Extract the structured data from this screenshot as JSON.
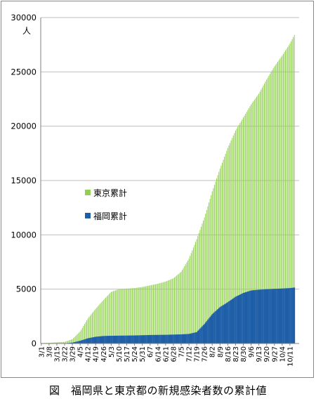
{
  "caption": "図　福岡県と東京都の新規感染者数の累計値",
  "chart_data": {
    "type": "bar",
    "ylabel": "人",
    "ylim": [
      0,
      30000
    ],
    "yticks": [
      0,
      5000,
      10000,
      15000,
      20000,
      25000,
      30000
    ],
    "grid": true,
    "legend_placement": "center-left",
    "x_range": [
      "3/1",
      "10/15"
    ],
    "xtick_labels": [
      "3/1",
      "3/8",
      "3/15",
      "3/22",
      "3/29",
      "4/5",
      "4/12",
      "4/19",
      "4/26",
      "5/3",
      "5/10",
      "5/17",
      "5/24",
      "5/31",
      "6/7",
      "6/14",
      "6/21",
      "6/28",
      "7/5",
      "7/12",
      "7/19",
      "7/26",
      "8/2",
      "8/9",
      "8/16",
      "8/23",
      "8/30",
      "9/6",
      "9/13",
      "9/20",
      "9/27",
      "10/4",
      "10/11"
    ],
    "series": [
      {
        "name": "東京累計",
        "color": "#92d050",
        "x": [
          "3/1",
          "3/8",
          "3/15",
          "3/22",
          "3/29",
          "4/5",
          "4/12",
          "4/19",
          "4/26",
          "5/3",
          "5/10",
          "5/17",
          "5/24",
          "5/31",
          "6/7",
          "6/14",
          "6/21",
          "6/28",
          "7/5",
          "7/12",
          "7/19",
          "7/26",
          "8/2",
          "8/9",
          "8/16",
          "8/23",
          "8/30",
          "9/6",
          "9/13",
          "9/20",
          "9/27",
          "10/4",
          "10/11",
          "10/15"
        ],
        "values": [
          40,
          60,
          110,
          150,
          400,
          1100,
          2300,
          3200,
          4000,
          4750,
          5000,
          5050,
          5100,
          5200,
          5350,
          5500,
          5700,
          6000,
          6600,
          7800,
          9600,
          11600,
          14000,
          16100,
          18000,
          19600,
          20800,
          22000,
          23000,
          24300,
          25500,
          26500,
          27600,
          28400
        ]
      },
      {
        "name": "福岡累計",
        "color": "#1f5fa8",
        "x": [
          "3/1",
          "3/8",
          "3/15",
          "3/22",
          "3/29",
          "4/5",
          "4/12",
          "4/19",
          "4/26",
          "5/3",
          "5/10",
          "5/17",
          "5/24",
          "5/31",
          "6/7",
          "6/14",
          "6/21",
          "6/28",
          "7/5",
          "7/12",
          "7/19",
          "7/26",
          "8/2",
          "8/9",
          "8/16",
          "8/23",
          "8/30",
          "9/6",
          "9/13",
          "9/20",
          "9/27",
          "10/4",
          "10/11",
          "10/15"
        ],
        "values": [
          0,
          5,
          10,
          20,
          80,
          250,
          480,
          620,
          690,
          710,
          720,
          730,
          740,
          760,
          780,
          790,
          800,
          820,
          840,
          880,
          1050,
          1800,
          2700,
          3350,
          3800,
          4300,
          4650,
          4880,
          4950,
          5000,
          5030,
          5060,
          5100,
          5150
        ]
      }
    ]
  }
}
